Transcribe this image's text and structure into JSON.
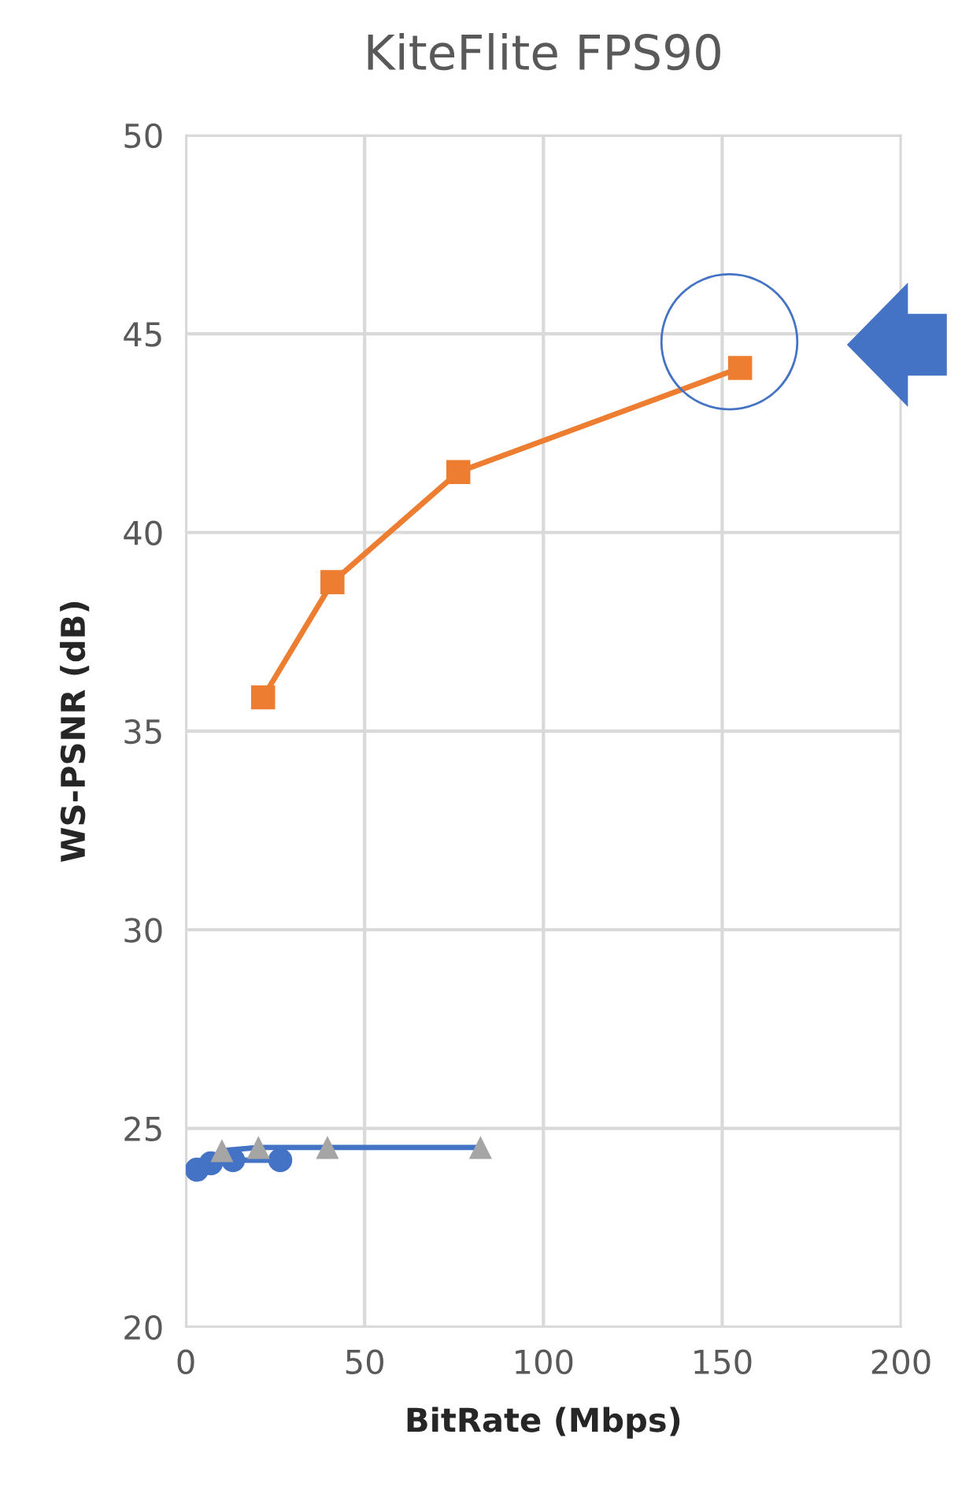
{
  "chart_data": {
    "type": "line",
    "title": "KiteFlite FPS90",
    "xlabel": "BitRate (Mbps)",
    "ylabel": "WS-PSNR (dB)",
    "xlim": [
      0,
      200
    ],
    "xticks": [
      0,
      50,
      100,
      150,
      200
    ],
    "ylim": [
      20,
      50
    ],
    "yticks": [
      20,
      25,
      30,
      35,
      40,
      45,
      50
    ],
    "grid": true,
    "legend": false,
    "series": [
      {
        "color": "#ed7d31",
        "marker": "square",
        "x": [
          21.6,
          41.0,
          76.2,
          155.0
        ],
        "values": [
          35.85,
          38.75,
          41.52,
          44.14
        ]
      },
      {
        "color": "#4472c4",
        "marker": "circle",
        "x": [
          3.1,
          7.0,
          13.2,
          26.4
        ],
        "values": [
          23.96,
          24.12,
          24.2,
          24.2
        ]
      },
      {
        "color": "#4472c4",
        "marker": "none",
        "x": [
          10.1,
          20.3,
          39.6,
          82.4
        ],
        "values": [
          24.44,
          24.52,
          24.52,
          24.52
        ]
      },
      {
        "type": "scatter",
        "color": "#a5a5a5",
        "marker": "triangle",
        "x": [
          10.1,
          20.3,
          39.6,
          82.4
        ],
        "values": [
          24.44,
          24.52,
          24.52,
          24.52
        ]
      }
    ]
  }
}
